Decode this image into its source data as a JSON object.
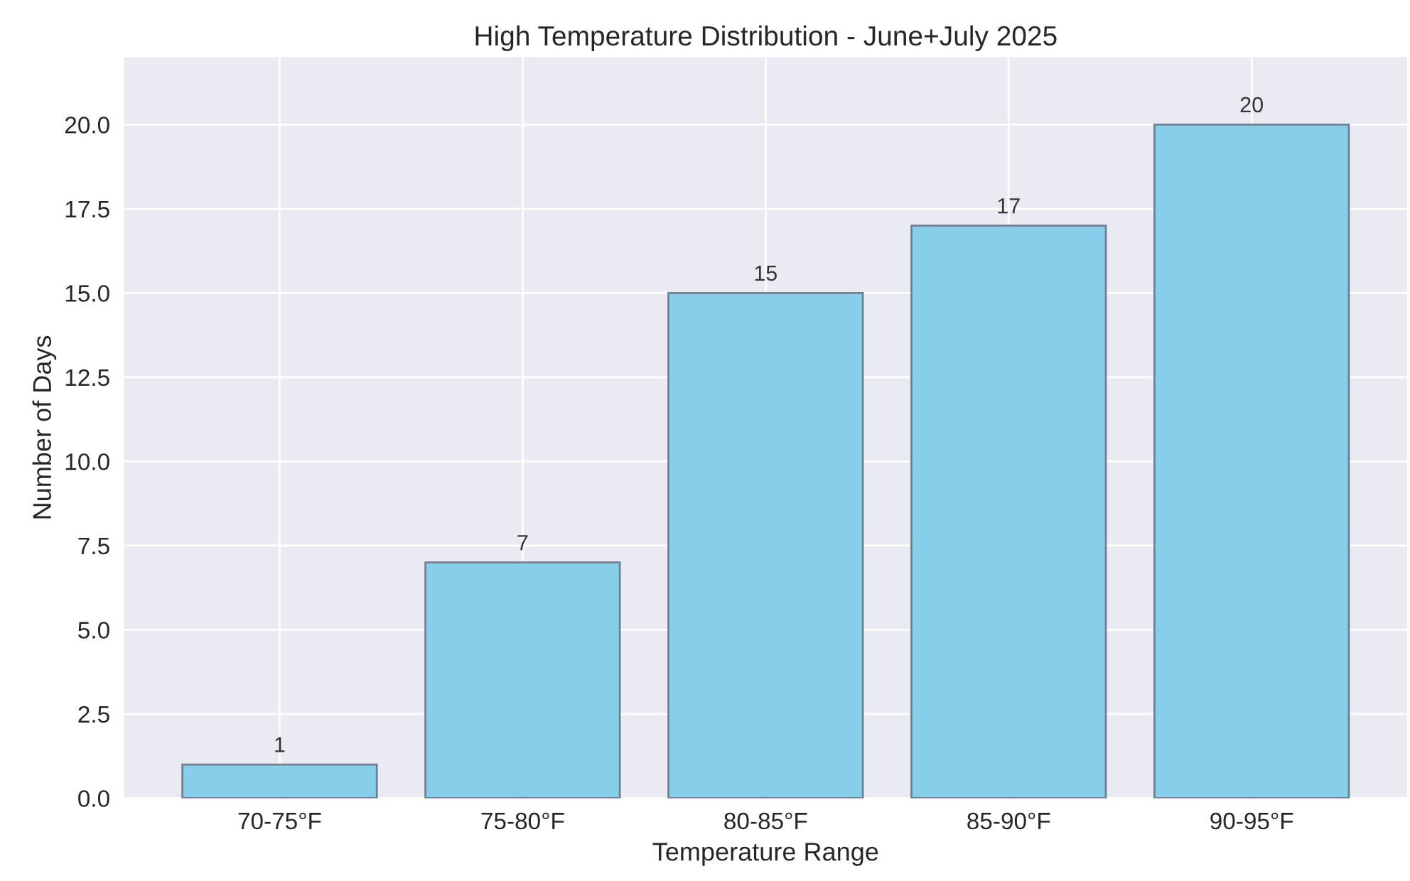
{
  "chart_data": {
    "type": "bar",
    "title": "High Temperature Distribution - June+July 2025",
    "xlabel": "Temperature Range",
    "ylabel": "Number of Days",
    "categories": [
      "70-75°F",
      "75-80°F",
      "80-85°F",
      "85-90°F",
      "90-95°F"
    ],
    "values": [
      1,
      7,
      15,
      17,
      20
    ],
    "color": "#87ceeb",
    "ylim": [
      0,
      22
    ],
    "yticks": [
      {
        "value": 0,
        "label": "0.0"
      },
      {
        "value": 2.5,
        "label": "2.5"
      },
      {
        "value": 5,
        "label": "5.0"
      },
      {
        "value": 7.5,
        "label": "7.5"
      },
      {
        "value": 10,
        "label": "10.0"
      },
      {
        "value": 12.5,
        "label": "12.5"
      },
      {
        "value": 15,
        "label": "15.0"
      },
      {
        "value": 17.5,
        "label": "17.5"
      },
      {
        "value": 20,
        "label": "20.0"
      }
    ],
    "grid": true,
    "data_labels": true
  }
}
